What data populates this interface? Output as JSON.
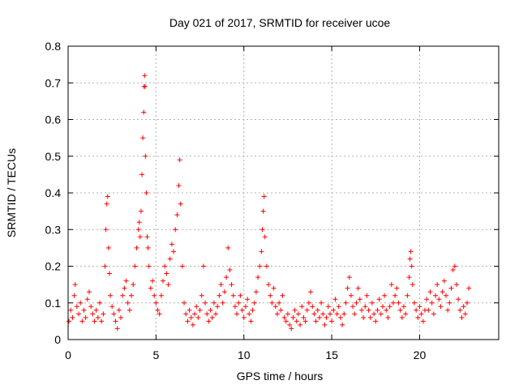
{
  "chart_data": {
    "type": "scatter",
    "title": "Day 021 of 2017, SRMTID for receiver ucoe",
    "xlabel": "GPS time / hours",
    "ylabel": "SRMTID / TECUs",
    "xlim": [
      0,
      24.5
    ],
    "ylim": [
      0,
      0.8
    ],
    "x_ticks": [
      0,
      5,
      10,
      15,
      20
    ],
    "y_ticks": [
      0,
      0.1,
      0.2,
      0.3,
      0.4,
      0.5,
      0.6,
      0.7,
      0.8
    ],
    "grid": true,
    "marker": "+",
    "color": "#ff0000",
    "series": [
      {
        "name": "SRMTID",
        "points": [
          [
            0.05,
            0.05
          ],
          [
            0.15,
            0.08
          ],
          [
            0.25,
            0.06
          ],
          [
            0.35,
            0.12
          ],
          [
            0.4,
            0.15
          ],
          [
            0.5,
            0.09
          ],
          [
            0.6,
            0.07
          ],
          [
            0.7,
            0.1
          ],
          [
            0.8,
            0.05
          ],
          [
            0.9,
            0.08
          ],
          [
            1.0,
            0.06
          ],
          [
            1.1,
            0.11
          ],
          [
            1.2,
            0.13
          ],
          [
            1.3,
            0.09
          ],
          [
            1.4,
            0.07
          ],
          [
            1.5,
            0.05
          ],
          [
            1.6,
            0.08
          ],
          [
            1.7,
            0.06
          ],
          [
            1.8,
            0.1
          ],
          [
            1.9,
            0.05
          ],
          [
            2.0,
            0.07
          ],
          [
            2.1,
            0.2
          ],
          [
            2.15,
            0.3
          ],
          [
            2.2,
            0.37
          ],
          [
            2.25,
            0.39
          ],
          [
            2.3,
            0.25
          ],
          [
            2.35,
            0.18
          ],
          [
            2.4,
            0.12
          ],
          [
            2.5,
            0.09
          ],
          [
            2.6,
            0.07
          ],
          [
            2.7,
            0.05
          ],
          [
            2.8,
            0.03
          ],
          [
            2.9,
            0.08
          ],
          [
            3.0,
            0.06
          ],
          [
            3.1,
            0.12
          ],
          [
            3.2,
            0.14
          ],
          [
            3.3,
            0.16
          ],
          [
            3.4,
            0.1
          ],
          [
            3.5,
            0.08
          ],
          [
            3.6,
            0.12
          ],
          [
            3.7,
            0.15
          ],
          [
            3.8,
            0.2
          ],
          [
            3.9,
            0.25
          ],
          [
            4.0,
            0.3
          ],
          [
            4.05,
            0.32
          ],
          [
            4.1,
            0.28
          ],
          [
            4.15,
            0.35
          ],
          [
            4.2,
            0.45
          ],
          [
            4.25,
            0.55
          ],
          [
            4.3,
            0.62
          ],
          [
            4.32,
            0.69
          ],
          [
            4.35,
            0.72
          ],
          [
            4.38,
            0.69
          ],
          [
            4.4,
            0.5
          ],
          [
            4.45,
            0.4
          ],
          [
            4.5,
            0.28
          ],
          [
            4.55,
            0.25
          ],
          [
            4.6,
            0.2
          ],
          [
            4.7,
            0.14
          ],
          [
            4.8,
            0.16
          ],
          [
            4.9,
            0.12
          ],
          [
            5.0,
            0.1
          ],
          [
            5.1,
            0.08
          ],
          [
            5.2,
            0.07
          ],
          [
            5.3,
            0.12
          ],
          [
            5.4,
            0.16
          ],
          [
            5.5,
            0.2
          ],
          [
            5.6,
            0.18
          ],
          [
            5.7,
            0.15
          ],
          [
            5.8,
            0.22
          ],
          [
            5.9,
            0.26
          ],
          [
            6.0,
            0.24
          ],
          [
            6.1,
            0.3
          ],
          [
            6.2,
            0.34
          ],
          [
            6.3,
            0.42
          ],
          [
            6.35,
            0.49
          ],
          [
            6.4,
            0.37
          ],
          [
            6.5,
            0.2
          ],
          [
            6.6,
            0.1
          ],
          [
            6.7,
            0.07
          ],
          [
            6.8,
            0.05
          ],
          [
            6.9,
            0.08
          ],
          [
            7.0,
            0.06
          ],
          [
            7.1,
            0.04
          ],
          [
            7.2,
            0.07
          ],
          [
            7.3,
            0.09
          ],
          [
            7.4,
            0.06
          ],
          [
            7.5,
            0.08
          ],
          [
            7.6,
            0.12
          ],
          [
            7.7,
            0.2
          ],
          [
            7.8,
            0.1
          ],
          [
            7.9,
            0.07
          ],
          [
            8.0,
            0.05
          ],
          [
            8.1,
            0.08
          ],
          [
            8.2,
            0.06
          ],
          [
            8.3,
            0.1
          ],
          [
            8.4,
            0.07
          ],
          [
            8.5,
            0.09
          ],
          [
            8.6,
            0.12
          ],
          [
            8.7,
            0.15
          ],
          [
            8.8,
            0.1
          ],
          [
            8.9,
            0.13
          ],
          [
            9.0,
            0.17
          ],
          [
            9.1,
            0.25
          ],
          [
            9.2,
            0.19
          ],
          [
            9.3,
            0.15
          ],
          [
            9.4,
            0.12
          ],
          [
            9.5,
            0.09
          ],
          [
            9.6,
            0.07
          ],
          [
            9.7,
            0.1
          ],
          [
            9.8,
            0.12
          ],
          [
            9.9,
            0.08
          ],
          [
            10.0,
            0.06
          ],
          [
            10.1,
            0.09
          ],
          [
            10.2,
            0.11
          ],
          [
            10.3,
            0.07
          ],
          [
            10.4,
            0.05
          ],
          [
            10.5,
            0.08
          ],
          [
            10.6,
            0.1
          ],
          [
            10.7,
            0.13
          ],
          [
            10.8,
            0.17
          ],
          [
            10.9,
            0.2
          ],
          [
            11.0,
            0.24
          ],
          [
            11.05,
            0.3
          ],
          [
            11.1,
            0.35
          ],
          [
            11.15,
            0.39
          ],
          [
            11.2,
            0.28
          ],
          [
            11.3,
            0.2
          ],
          [
            11.4,
            0.15
          ],
          [
            11.5,
            0.12
          ],
          [
            11.6,
            0.1
          ],
          [
            11.7,
            0.14
          ],
          [
            11.8,
            0.09
          ],
          [
            11.9,
            0.07
          ],
          [
            12.0,
            0.1
          ],
          [
            12.1,
            0.08
          ],
          [
            12.2,
            0.12
          ],
          [
            12.3,
            0.06
          ],
          [
            12.4,
            0.05
          ],
          [
            12.5,
            0.07
          ],
          [
            12.6,
            0.04
          ],
          [
            12.7,
            0.03
          ],
          [
            12.8,
            0.06
          ],
          [
            12.9,
            0.08
          ],
          [
            13.0,
            0.05
          ],
          [
            13.1,
            0.07
          ],
          [
            13.2,
            0.04
          ],
          [
            13.3,
            0.09
          ],
          [
            13.4,
            0.06
          ],
          [
            13.5,
            0.05
          ],
          [
            13.6,
            0.08
          ],
          [
            13.7,
            0.1
          ],
          [
            13.8,
            0.13
          ],
          [
            13.9,
            0.09
          ],
          [
            14.0,
            0.07
          ],
          [
            14.1,
            0.05
          ],
          [
            14.2,
            0.08
          ],
          [
            14.3,
            0.06
          ],
          [
            14.4,
            0.1
          ],
          [
            14.5,
            0.07
          ],
          [
            14.6,
            0.04
          ],
          [
            14.7,
            0.06
          ],
          [
            14.8,
            0.09
          ],
          [
            14.9,
            0.07
          ],
          [
            15.0,
            0.05
          ],
          [
            15.1,
            0.08
          ],
          [
            15.2,
            0.11
          ],
          [
            15.3,
            0.07
          ],
          [
            15.4,
            0.09
          ],
          [
            15.5,
            0.06
          ],
          [
            15.6,
            0.04
          ],
          [
            15.7,
            0.07
          ],
          [
            15.8,
            0.1
          ],
          [
            15.9,
            0.14
          ],
          [
            16.0,
            0.17
          ],
          [
            16.1,
            0.12
          ],
          [
            16.2,
            0.09
          ],
          [
            16.3,
            0.07
          ],
          [
            16.4,
            0.1
          ],
          [
            16.5,
            0.14
          ],
          [
            16.6,
            0.11
          ],
          [
            16.7,
            0.08
          ],
          [
            16.8,
            0.06
          ],
          [
            16.9,
            0.09
          ],
          [
            17.0,
            0.12
          ],
          [
            17.1,
            0.08
          ],
          [
            17.2,
            0.06
          ],
          [
            17.3,
            0.1
          ],
          [
            17.4,
            0.07
          ],
          [
            17.5,
            0.05
          ],
          [
            17.6,
            0.08
          ],
          [
            17.7,
            0.11
          ],
          [
            17.8,
            0.07
          ],
          [
            17.9,
            0.09
          ],
          [
            18.0,
            0.12
          ],
          [
            18.1,
            0.08
          ],
          [
            18.2,
            0.06
          ],
          [
            18.3,
            0.09
          ],
          [
            18.4,
            0.15
          ],
          [
            18.5,
            0.1
          ],
          [
            18.6,
            0.12
          ],
          [
            18.7,
            0.14
          ],
          [
            18.8,
            0.1
          ],
          [
            18.9,
            0.08
          ],
          [
            19.0,
            0.06
          ],
          [
            19.1,
            0.09
          ],
          [
            19.2,
            0.07
          ],
          [
            19.3,
            0.12
          ],
          [
            19.4,
            0.17
          ],
          [
            19.45,
            0.22
          ],
          [
            19.5,
            0.24
          ],
          [
            19.55,
            0.2
          ],
          [
            19.6,
            0.15
          ],
          [
            19.7,
            0.1
          ],
          [
            19.8,
            0.08
          ],
          [
            19.9,
            0.06
          ],
          [
            20.0,
            0.09
          ],
          [
            20.1,
            0.07
          ],
          [
            20.2,
            0.05
          ],
          [
            20.3,
            0.08
          ],
          [
            20.4,
            0.11
          ],
          [
            20.5,
            0.08
          ],
          [
            20.6,
            0.13
          ],
          [
            20.7,
            0.1
          ],
          [
            20.8,
            0.07
          ],
          [
            20.9,
            0.12
          ],
          [
            21.0,
            0.15
          ],
          [
            21.1,
            0.11
          ],
          [
            21.2,
            0.09
          ],
          [
            21.3,
            0.13
          ],
          [
            21.4,
            0.16
          ],
          [
            21.5,
            0.12
          ],
          [
            21.6,
            0.08
          ],
          [
            21.7,
            0.1
          ],
          [
            21.8,
            0.14
          ],
          [
            21.9,
            0.19
          ],
          [
            22.0,
            0.2
          ],
          [
            22.1,
            0.15
          ],
          [
            22.2,
            0.11
          ],
          [
            22.3,
            0.08
          ],
          [
            22.4,
            0.06
          ],
          [
            22.5,
            0.09
          ],
          [
            22.6,
            0.07
          ],
          [
            22.7,
            0.1
          ],
          [
            22.8,
            0.14
          ]
        ]
      }
    ]
  }
}
